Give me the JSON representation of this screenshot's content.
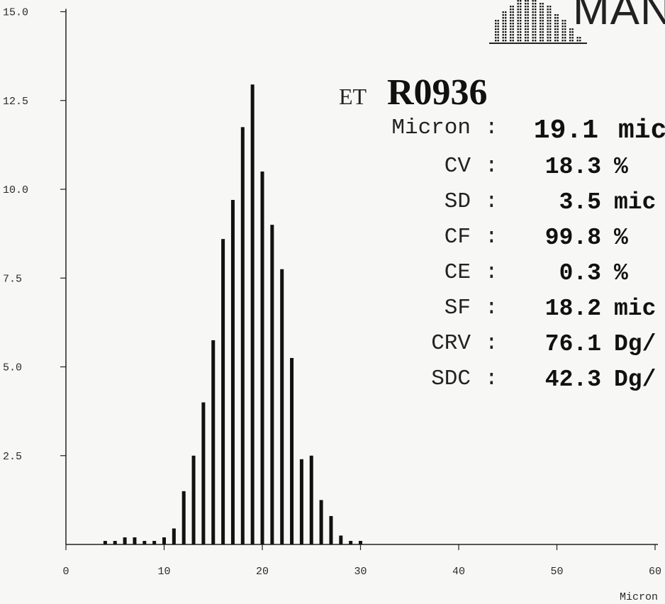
{
  "logo": {
    "text": "MAN",
    "icon": "bar-histogram-logo-icon"
  },
  "sample": {
    "prefix": "ET",
    "id": "R0936"
  },
  "stats": [
    {
      "label": "Micron",
      "value": "19.1",
      "unit": "mic",
      "big": true
    },
    {
      "label": "CV",
      "value": "18.3",
      "unit": "%"
    },
    {
      "label": "SD",
      "value": "3.5",
      "unit": "mic"
    },
    {
      "label": "CF",
      "value": "99.8",
      "unit": "%"
    },
    {
      "label": "CE",
      "value": "0.3",
      "unit": "%"
    },
    {
      "label": "SF",
      "value": "18.2",
      "unit": "mic"
    },
    {
      "label": "CRV",
      "value": "76.1",
      "unit": "Dg/"
    },
    {
      "label": "SDC",
      "value": "42.3",
      "unit": "Dg/"
    }
  ],
  "chart_data": {
    "type": "bar",
    "xlabel": "Micron",
    "ylabel": "",
    "xlim": [
      0,
      60
    ],
    "ylim": [
      0,
      15
    ],
    "xticks": [
      0,
      10,
      20,
      30,
      40,
      50,
      60
    ],
    "yticks": [
      2.5,
      5.0,
      7.5,
      10.0,
      12.5,
      15.0
    ],
    "ytick_labels": [
      "2.5",
      "5.0",
      "7.5",
      "10.0",
      "12.5",
      "15.0"
    ],
    "grid": false,
    "x": [
      4,
      5,
      6,
      7,
      8,
      9,
      10,
      11,
      12,
      13,
      14,
      15,
      16,
      17,
      18,
      19,
      20,
      21,
      22,
      23,
      24,
      25,
      26,
      27,
      28,
      29,
      30
    ],
    "values": [
      0.1,
      0.1,
      0.2,
      0.2,
      0.1,
      0.1,
      0.2,
      0.45,
      1.5,
      2.5,
      4.0,
      5.75,
      8.6,
      9.7,
      11.75,
      12.95,
      10.5,
      9.0,
      7.75,
      5.25,
      2.4,
      2.5,
      1.25,
      0.8,
      0.25,
      0.1,
      0.1
    ]
  }
}
